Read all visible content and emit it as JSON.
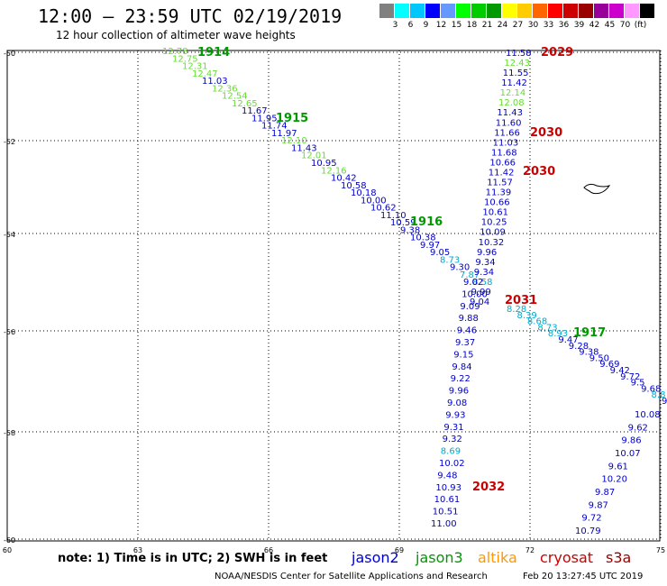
{
  "title": "12:00 – 23:59 UTC 02/19/2019",
  "subtitle": "12 hour collection of altimeter wave heights",
  "scale": {
    "colors": [
      "#808080",
      "#00ffff",
      "#00c8ff",
      "#0000ff",
      "#6699ff",
      "#00ff00",
      "#00cc00",
      "#009900",
      "#ffff00",
      "#ffcc00",
      "#ff6600",
      "#ff0000",
      "#cc0000",
      "#990000",
      "#990099",
      "#cc00cc",
      "#ff99ff",
      "#000000"
    ],
    "labels": [
      "3",
      "6",
      "9",
      "12",
      "15",
      "18",
      "21",
      "24",
      "27",
      "30",
      "33",
      "36",
      "39",
      "42",
      "45",
      "70",
      "(ft)"
    ]
  },
  "axes": {
    "lat_labels": [
      "-50",
      "-52",
      "-54",
      "-56",
      "-58",
      "-60"
    ],
    "lon_labels": [
      "60",
      "63",
      "66",
      "69",
      "72",
      "75"
    ]
  },
  "track_labels": [
    {
      "text": "1914",
      "color": "#009900"
    },
    {
      "text": "1915",
      "color": "#009900"
    },
    {
      "text": "1916",
      "color": "#009900"
    },
    {
      "text": "1917",
      "color": "#009900"
    },
    {
      "text": "2029",
      "color": "#cc0000"
    },
    {
      "text": "2030",
      "color": "#cc0000"
    },
    {
      "text": "2030",
      "color": "#cc0000"
    },
    {
      "text": "2031",
      "color": "#cc0000"
    },
    {
      "text": "2032",
      "color": "#cc0000"
    }
  ],
  "track_values": {
    "diag_upper": [
      "12.78",
      "12.75",
      "12.31",
      "12.47",
      "11.03",
      "12.36",
      "12.54",
      "12.65",
      "11.67",
      "11.95",
      "11.74",
      "11.97",
      "12.10",
      "11.43",
      "12.01",
      "10.95",
      "12.16",
      "10.42",
      "10.58",
      "10.18",
      "10.00",
      "10.62",
      "11.10",
      "10.59",
      "9.38",
      "10.38",
      "9.97",
      "9.05",
      "8.73",
      "9.30",
      "7.87"
    ],
    "diag_lower": [
      "8.28",
      "8.39",
      "8.68",
      "8.73",
      "8.93",
      "9.47",
      "9.28",
      "9.38",
      "9.50",
      "9.69",
      "9.42",
      "9.72",
      "9.5",
      "9.68",
      "8.8",
      "9"
    ],
    "vert_upper": [
      "11.58",
      "12.43",
      "11.55",
      "11.42",
      "12.14",
      "12.08",
      "11.43",
      "11.60",
      "11.66",
      "11.03",
      "11.68",
      "10.66",
      "11.42",
      "11.57",
      "11.39",
      "10.66",
      "10.61",
      "10.25",
      "10.09",
      "10.32",
      "9.96",
      "9.34",
      "9.34",
      "8.58",
      "9.99",
      "9.04"
    ],
    "vert_lower": [
      "9.02",
      "10.00",
      "9.09",
      "9.88",
      "9.46",
      "9.37",
      "9.15",
      "9.84",
      "9.22",
      "9.96",
      "9.08",
      "9.93",
      "9.31",
      "9.32",
      "8.69",
      "10.02",
      "9.48",
      "10.93",
      "10.61",
      "10.51",
      "11.00"
    ],
    "right_track": [
      "10.08",
      "9.62",
      "9.86",
      "10.07",
      "9.61",
      "10.20",
      "9.87",
      "9.87",
      "9.72",
      "10.79"
    ]
  },
  "island_label": "",
  "note": "note: 1) Time is in UTC; 2) SWH is in feet",
  "legend": [
    {
      "label": "jason2",
      "color": "#0000cc"
    },
    {
      "label": "jason3",
      "color": "#009900"
    },
    {
      "label": "altika",
      "color": "#ff9900"
    },
    {
      "label": "cryosat",
      "color": "#cc0000"
    },
    {
      "label": "s3a",
      "color": "#990000"
    }
  ],
  "footer": "NOAA/NESDIS Center for Satellite Applications and Research",
  "timestamp": "Feb 20 13:27:45 UTC 2019"
}
